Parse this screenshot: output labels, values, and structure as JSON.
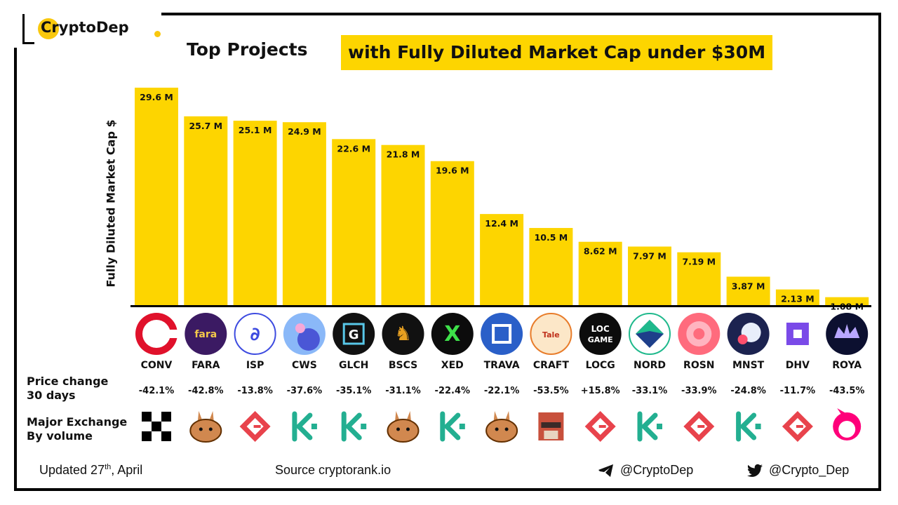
{
  "brand": {
    "name": "CryptoDep"
  },
  "title": {
    "part1": "Top Projects",
    "part2": "with Fully Diluted Market Cap under $30M"
  },
  "colors": {
    "bar": "#fdd500",
    "accent": "#fdd500",
    "axis": "#000000",
    "text": "#111111"
  },
  "chart_data": {
    "type": "bar",
    "title": "Top Projects with Fully Diluted Market Cap under $30M",
    "ylabel": "Fully Diluted  Market Cap $",
    "xlabel": "",
    "categories": [
      "CONV",
      "FARA",
      "ISP",
      "CWS",
      "GLCH",
      "BSCS",
      "XED",
      "TRAVA",
      "CRAFT",
      "LOCG",
      "NORD",
      "ROSN",
      "MNST",
      "DHV",
      "ROYA"
    ],
    "values": [
      29.6,
      25.7,
      25.1,
      24.9,
      22.6,
      21.8,
      19.6,
      12.4,
      10.5,
      8.62,
      7.97,
      7.19,
      3.87,
      2.13,
      1.08
    ],
    "value_labels": [
      "29.6 M",
      "25.7 M",
      "25.1 M",
      "24.9 M",
      "22.6 M",
      "21.8 M",
      "19.6 M",
      "12.4 M",
      "10.5 M",
      "8.62 M",
      "7.97 M",
      "7.19 M",
      "3.87 M",
      "2.13 M",
      "1.08 M"
    ],
    "unit": "M",
    "ylim": [
      0,
      30
    ],
    "grid": false,
    "legend": "none"
  },
  "tokens": [
    {
      "symbol": "CONV",
      "icon": "conv-icon",
      "price_change": "-42.1%",
      "exchange": "okx-icon"
    },
    {
      "symbol": "FARA",
      "icon": "fara-icon",
      "price_change": "-42.8%",
      "exchange": "pancakeswap-icon"
    },
    {
      "symbol": "ISP",
      "icon": "isp-icon",
      "price_change": "-13.8%",
      "exchange": "gate-io-icon"
    },
    {
      "symbol": "CWS",
      "icon": "cws-icon",
      "price_change": "-37.6%",
      "exchange": "kucoin-icon"
    },
    {
      "symbol": "GLCH",
      "icon": "glch-icon",
      "price_change": "-35.1%",
      "exchange": "kucoin-icon"
    },
    {
      "symbol": "BSCS",
      "icon": "bscs-icon",
      "price_change": "-31.1%",
      "exchange": "pancakeswap-icon"
    },
    {
      "symbol": "XED",
      "icon": "xed-icon",
      "price_change": "-22.4%",
      "exchange": "kucoin-icon"
    },
    {
      "symbol": "TRAVA",
      "icon": "trava-icon",
      "price_change": "-22.1%",
      "exchange": "pancakeswap-icon"
    },
    {
      "symbol": "CRAFT",
      "icon": "craft-icon",
      "price_change": "-53.5%",
      "exchange": "mdex-icon"
    },
    {
      "symbol": "LOCG",
      "icon": "locg-icon",
      "price_change": "+15.8%",
      "exchange": "gate-io-icon"
    },
    {
      "symbol": "NORD",
      "icon": "nord-icon",
      "price_change": "-33.1%",
      "exchange": "kucoin-icon"
    },
    {
      "symbol": "ROSN",
      "icon": "rosn-icon",
      "price_change": "-33.9%",
      "exchange": "gate-io-icon"
    },
    {
      "symbol": "MNST",
      "icon": "mnst-icon",
      "price_change": "-24.8%",
      "exchange": "kucoin-icon"
    },
    {
      "symbol": "DHV",
      "icon": "dhv-icon",
      "price_change": "-11.7%",
      "exchange": "gate-io-icon"
    },
    {
      "symbol": "ROYA",
      "icon": "roya-icon",
      "price_change": "-43.5%",
      "exchange": "uniswap-icon"
    }
  ],
  "rows": {
    "price_change_line1": "Price change",
    "price_change_line2": "30 days",
    "exchange_line1": "Major Exchange",
    "exchange_line2": "By volume"
  },
  "footer": {
    "updated_prefix": "Updated 27",
    "updated_sup": "th",
    "updated_suffix": ", April",
    "source": "Source  cryptorank.io",
    "telegram": "@CryptoDep",
    "twitter": "@Crypto_Dep"
  }
}
